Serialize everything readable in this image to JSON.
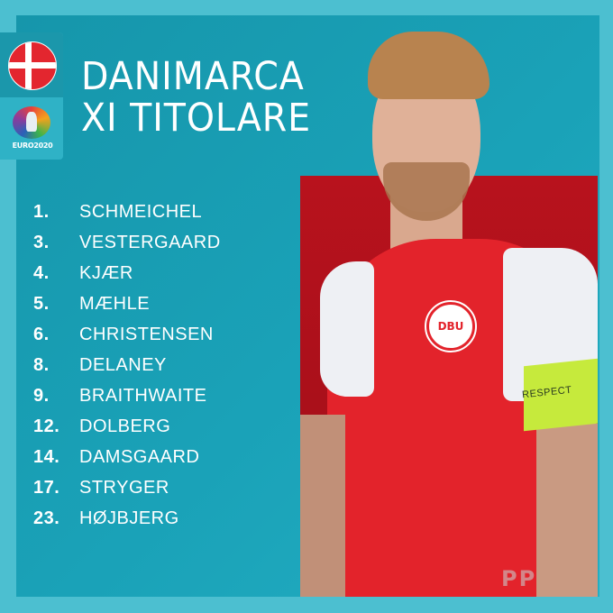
{
  "header": {
    "title_line1": "DANIMARCA",
    "title_line2": "XI TITOLARE"
  },
  "badge": {
    "flag": "denmark-flag",
    "logo_text": "EURO2020"
  },
  "lineup": [
    {
      "number": "1.",
      "name": "SCHMEICHEL"
    },
    {
      "number": "3.",
      "name": "VESTERGAARD"
    },
    {
      "number": "4.",
      "name": "KJÆR"
    },
    {
      "number": "5.",
      "name": "MÆHLE"
    },
    {
      "number": "6.",
      "name": "CHRISTENSEN"
    },
    {
      "number": "8.",
      "name": "DELANEY"
    },
    {
      "number": "9.",
      "name": "BRAITHWAITE"
    },
    {
      "number": "12.",
      "name": "DOLBERG"
    },
    {
      "number": "14.",
      "name": "DAMSGAARD"
    },
    {
      "number": "17.",
      "name": "STRYGER"
    },
    {
      "number": "23.",
      "name": "HØJBJERG"
    }
  ],
  "photo": {
    "crest_text": "DBU",
    "armband_text": "RESPECT"
  },
  "watermark": "PP",
  "colors": {
    "background": "#4cbfd0",
    "panel": "#1a9fb5",
    "photo_bg": "#b8121d",
    "jersey": "#e3232b"
  }
}
